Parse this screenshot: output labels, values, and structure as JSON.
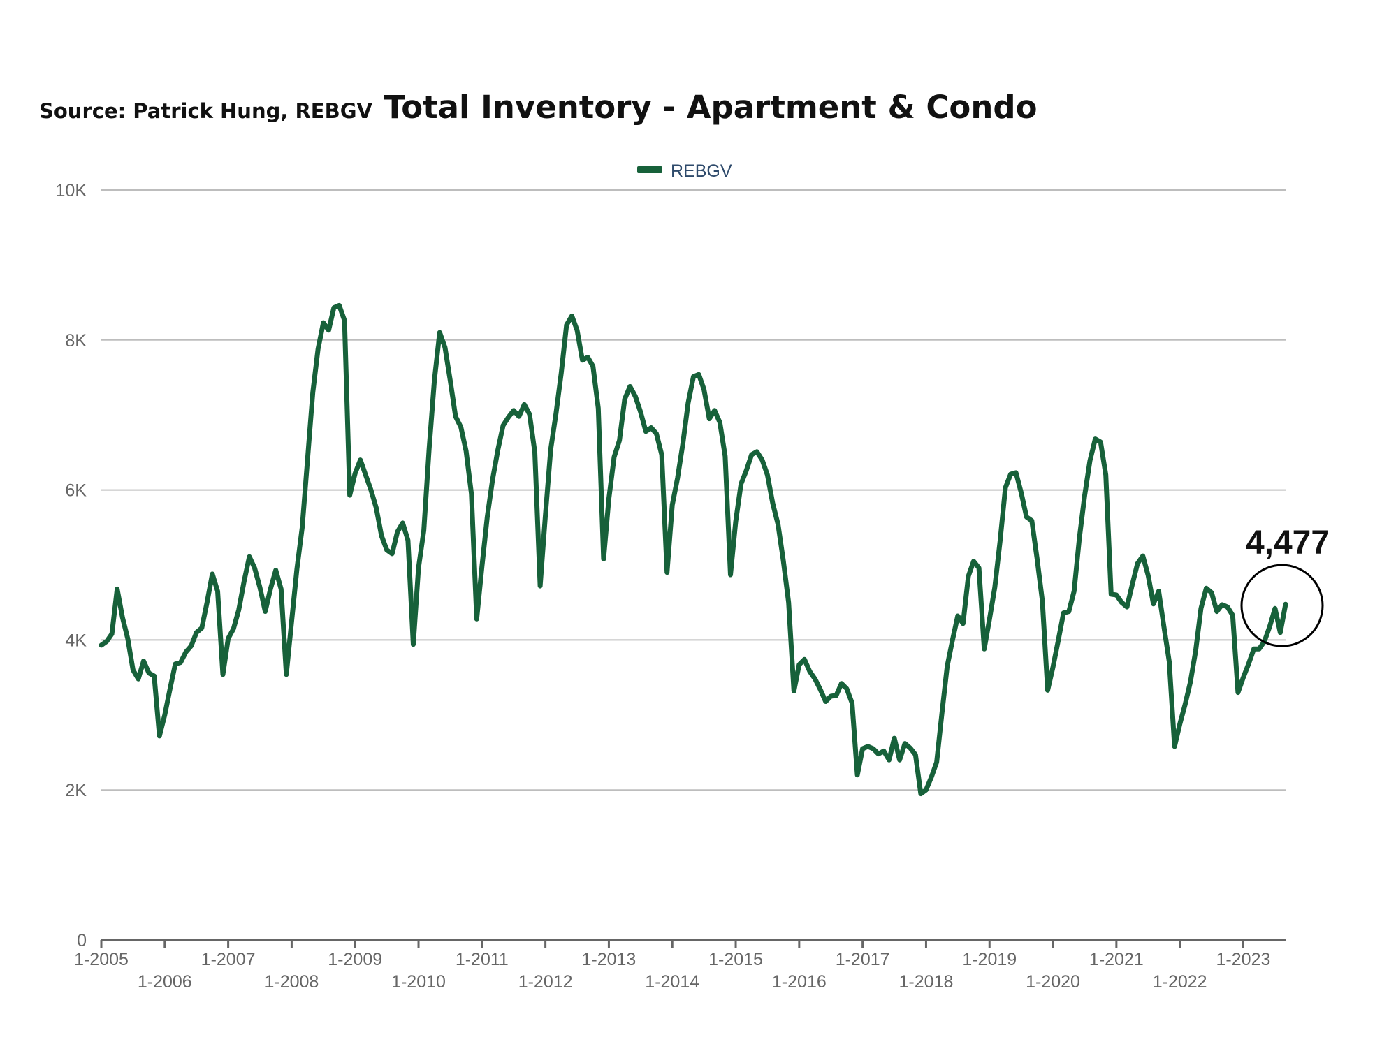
{
  "header": {
    "source": "Source:  Patrick Hung, REBGV",
    "title": "Total Inventory - Apartment & Condo"
  },
  "callout": {
    "label": "4,477"
  },
  "chart_data": {
    "type": "line",
    "title": "Total Inventory - Apartment & Condo",
    "xlabel": "",
    "ylabel": "",
    "ylim": [
      0,
      10000
    ],
    "yticks": [
      0,
      2000,
      4000,
      6000,
      8000,
      10000
    ],
    "ytick_labels": [
      "0",
      "2K",
      "4K",
      "6K",
      "8K",
      "10K"
    ],
    "xlim": [
      "2005-01",
      "2023-09"
    ],
    "xticks": [
      "2005-01",
      "2006-01",
      "2007-01",
      "2008-01",
      "2009-01",
      "2010-01",
      "2011-01",
      "2012-01",
      "2013-01",
      "2014-01",
      "2015-01",
      "2016-01",
      "2017-01",
      "2018-01",
      "2019-01",
      "2020-01",
      "2021-01",
      "2022-01",
      "2023-01"
    ],
    "xtick_labels": [
      "1-2005",
      "1-2006",
      "1-2007",
      "1-2008",
      "1-2009",
      "1-2010",
      "1-2011",
      "1-2012",
      "1-2013",
      "1-2014",
      "1-2015",
      "1-2016",
      "1-2017",
      "1-2018",
      "1-2019",
      "1-2020",
      "1-2021",
      "1-2022",
      "1-2023"
    ],
    "grid": true,
    "legend_position": "top-center",
    "colors": {
      "line": "#17613a",
      "grid": "#bdbdbd",
      "axis": "#666666",
      "annotation": "#000000"
    },
    "annotation": {
      "text": "4,477",
      "x": "2023-09",
      "y": 4477,
      "shape": "circle"
    },
    "series": [
      {
        "name": "REBGV",
        "points": [
          [
            "2005-01",
            3930
          ],
          [
            "2005-02",
            3980
          ],
          [
            "2005-03",
            4080
          ],
          [
            "2005-04",
            4680
          ],
          [
            "2005-05",
            4300
          ],
          [
            "2005-06",
            4020
          ],
          [
            "2005-07",
            3600
          ],
          [
            "2005-08",
            3480
          ],
          [
            "2005-09",
            3720
          ],
          [
            "2005-10",
            3560
          ],
          [
            "2005-11",
            3520
          ],
          [
            "2005-12",
            2720
          ],
          [
            "2006-01",
            3000
          ],
          [
            "2006-02",
            3350
          ],
          [
            "2006-03",
            3680
          ],
          [
            "2006-04",
            3700
          ],
          [
            "2006-05",
            3840
          ],
          [
            "2006-06",
            3920
          ],
          [
            "2006-07",
            4100
          ],
          [
            "2006-08",
            4160
          ],
          [
            "2006-09",
            4500
          ],
          [
            "2006-10",
            4880
          ],
          [
            "2006-11",
            4650
          ],
          [
            "2006-12",
            3540
          ],
          [
            "2007-01",
            4020
          ],
          [
            "2007-02",
            4150
          ],
          [
            "2007-03",
            4400
          ],
          [
            "2007-04",
            4780
          ],
          [
            "2007-05",
            5110
          ],
          [
            "2007-06",
            4960
          ],
          [
            "2007-07",
            4700
          ],
          [
            "2007-08",
            4380
          ],
          [
            "2007-09",
            4680
          ],
          [
            "2007-10",
            4930
          ],
          [
            "2007-11",
            4680
          ],
          [
            "2007-12",
            3540
          ],
          [
            "2008-01",
            4250
          ],
          [
            "2008-02",
            4950
          ],
          [
            "2008-03",
            5500
          ],
          [
            "2008-04",
            6400
          ],
          [
            "2008-05",
            7300
          ],
          [
            "2008-06",
            7880
          ],
          [
            "2008-07",
            8230
          ],
          [
            "2008-08",
            8130
          ],
          [
            "2008-09",
            8430
          ],
          [
            "2008-10",
            8460
          ],
          [
            "2008-11",
            8260
          ],
          [
            "2008-12",
            5930
          ],
          [
            "2009-01",
            6220
          ],
          [
            "2009-02",
            6400
          ],
          [
            "2009-03",
            6200
          ],
          [
            "2009-04",
            6000
          ],
          [
            "2009-05",
            5760
          ],
          [
            "2009-06",
            5390
          ],
          [
            "2009-07",
            5200
          ],
          [
            "2009-08",
            5150
          ],
          [
            "2009-09",
            5440
          ],
          [
            "2009-10",
            5560
          ],
          [
            "2009-11",
            5330
          ],
          [
            "2009-12",
            3940
          ],
          [
            "2010-01",
            4960
          ],
          [
            "2010-02",
            5460
          ],
          [
            "2010-03",
            6550
          ],
          [
            "2010-04",
            7460
          ],
          [
            "2010-05",
            8100
          ],
          [
            "2010-06",
            7900
          ],
          [
            "2010-07",
            7460
          ],
          [
            "2010-08",
            6980
          ],
          [
            "2010-09",
            6840
          ],
          [
            "2010-10",
            6520
          ],
          [
            "2010-11",
            5950
          ],
          [
            "2010-12",
            4280
          ],
          [
            "2011-01",
            4980
          ],
          [
            "2011-02",
            5640
          ],
          [
            "2011-03",
            6140
          ],
          [
            "2011-04",
            6530
          ],
          [
            "2011-05",
            6860
          ],
          [
            "2011-06",
            6970
          ],
          [
            "2011-07",
            7060
          ],
          [
            "2011-08",
            6980
          ],
          [
            "2011-09",
            7140
          ],
          [
            "2011-10",
            7010
          ],
          [
            "2011-11",
            6500
          ],
          [
            "2011-12",
            4720
          ],
          [
            "2012-01",
            5660
          ],
          [
            "2012-02",
            6540
          ],
          [
            "2012-03",
            7020
          ],
          [
            "2012-04",
            7560
          ],
          [
            "2012-05",
            8200
          ],
          [
            "2012-06",
            8320
          ],
          [
            "2012-07",
            8130
          ],
          [
            "2012-08",
            7730
          ],
          [
            "2012-09",
            7770
          ],
          [
            "2012-10",
            7650
          ],
          [
            "2012-11",
            7090
          ],
          [
            "2012-12",
            5080
          ],
          [
            "2013-01",
            5880
          ],
          [
            "2013-02",
            6440
          ],
          [
            "2013-03",
            6660
          ],
          [
            "2013-04",
            7210
          ],
          [
            "2013-05",
            7380
          ],
          [
            "2013-06",
            7250
          ],
          [
            "2013-07",
            7040
          ],
          [
            "2013-08",
            6780
          ],
          [
            "2013-09",
            6830
          ],
          [
            "2013-10",
            6750
          ],
          [
            "2013-11",
            6470
          ],
          [
            "2013-12",
            4900
          ],
          [
            "2014-01",
            5800
          ],
          [
            "2014-02",
            6160
          ],
          [
            "2014-03",
            6620
          ],
          [
            "2014-04",
            7160
          ],
          [
            "2014-05",
            7510
          ],
          [
            "2014-06",
            7540
          ],
          [
            "2014-07",
            7340
          ],
          [
            "2014-08",
            6950
          ],
          [
            "2014-09",
            7060
          ],
          [
            "2014-10",
            6900
          ],
          [
            "2014-11",
            6450
          ],
          [
            "2014-12",
            4870
          ],
          [
            "2015-01",
            5580
          ],
          [
            "2015-02",
            6080
          ],
          [
            "2015-03",
            6260
          ],
          [
            "2015-04",
            6470
          ],
          [
            "2015-05",
            6510
          ],
          [
            "2015-06",
            6400
          ],
          [
            "2015-07",
            6200
          ],
          [
            "2015-08",
            5820
          ],
          [
            "2015-09",
            5540
          ],
          [
            "2015-10",
            5060
          ],
          [
            "2015-11",
            4500
          ],
          [
            "2015-12",
            3320
          ],
          [
            "2016-01",
            3670
          ],
          [
            "2016-02",
            3740
          ],
          [
            "2016-03",
            3580
          ],
          [
            "2016-04",
            3480
          ],
          [
            "2016-05",
            3340
          ],
          [
            "2016-06",
            3180
          ],
          [
            "2016-07",
            3250
          ],
          [
            "2016-08",
            3260
          ],
          [
            "2016-09",
            3420
          ],
          [
            "2016-10",
            3350
          ],
          [
            "2016-11",
            3160
          ],
          [
            "2016-12",
            2200
          ],
          [
            "2017-01",
            2550
          ],
          [
            "2017-02",
            2580
          ],
          [
            "2017-03",
            2550
          ],
          [
            "2017-04",
            2480
          ],
          [
            "2017-05",
            2520
          ],
          [
            "2017-06",
            2400
          ],
          [
            "2017-07",
            2690
          ],
          [
            "2017-08",
            2400
          ],
          [
            "2017-09",
            2620
          ],
          [
            "2017-10",
            2560
          ],
          [
            "2017-11",
            2470
          ],
          [
            "2017-12",
            1950
          ],
          [
            "2018-01",
            2000
          ],
          [
            "2018-02",
            2170
          ],
          [
            "2018-03",
            2370
          ],
          [
            "2018-04",
            3020
          ],
          [
            "2018-05",
            3650
          ],
          [
            "2018-06",
            4000
          ],
          [
            "2018-07",
            4320
          ],
          [
            "2018-08",
            4220
          ],
          [
            "2018-09",
            4850
          ],
          [
            "2018-10",
            5050
          ],
          [
            "2018-11",
            4960
          ],
          [
            "2018-12",
            3880
          ],
          [
            "2019-01",
            4280
          ],
          [
            "2019-02",
            4700
          ],
          [
            "2019-03",
            5320
          ],
          [
            "2019-04",
            6030
          ],
          [
            "2019-05",
            6210
          ],
          [
            "2019-06",
            6230
          ],
          [
            "2019-07",
            5960
          ],
          [
            "2019-08",
            5640
          ],
          [
            "2019-09",
            5590
          ],
          [
            "2019-10",
            5080
          ],
          [
            "2019-11",
            4520
          ],
          [
            "2019-12",
            3330
          ],
          [
            "2020-01",
            3640
          ],
          [
            "2020-02",
            3990
          ],
          [
            "2020-03",
            4360
          ],
          [
            "2020-04",
            4380
          ],
          [
            "2020-05",
            4650
          ],
          [
            "2020-06",
            5360
          ],
          [
            "2020-07",
            5930
          ],
          [
            "2020-08",
            6390
          ],
          [
            "2020-09",
            6680
          ],
          [
            "2020-10",
            6640
          ],
          [
            "2020-11",
            6200
          ],
          [
            "2020-12",
            4610
          ],
          [
            "2021-01",
            4600
          ],
          [
            "2021-02",
            4500
          ],
          [
            "2021-03",
            4440
          ],
          [
            "2021-04",
            4740
          ],
          [
            "2021-05",
            5020
          ],
          [
            "2021-06",
            5120
          ],
          [
            "2021-07",
            4860
          ],
          [
            "2021-08",
            4480
          ],
          [
            "2021-09",
            4650
          ],
          [
            "2021-10",
            4170
          ],
          [
            "2021-11",
            3710
          ],
          [
            "2021-12",
            2580
          ],
          [
            "2022-01",
            2880
          ],
          [
            "2022-02",
            3140
          ],
          [
            "2022-03",
            3440
          ],
          [
            "2022-04",
            3860
          ],
          [
            "2022-05",
            4420
          ],
          [
            "2022-06",
            4690
          ],
          [
            "2022-07",
            4630
          ],
          [
            "2022-08",
            4380
          ],
          [
            "2022-09",
            4470
          ],
          [
            "2022-10",
            4440
          ],
          [
            "2022-11",
            4330
          ],
          [
            "2022-12",
            3300
          ],
          [
            "2023-01",
            3500
          ],
          [
            "2023-02",
            3680
          ],
          [
            "2023-03",
            3880
          ],
          [
            "2023-04",
            3880
          ],
          [
            "2023-05",
            3980
          ],
          [
            "2023-06",
            4180
          ],
          [
            "2023-07",
            4420
          ],
          [
            "2023-08",
            4100
          ],
          [
            "2023-09",
            4477
          ]
        ]
      }
    ]
  }
}
